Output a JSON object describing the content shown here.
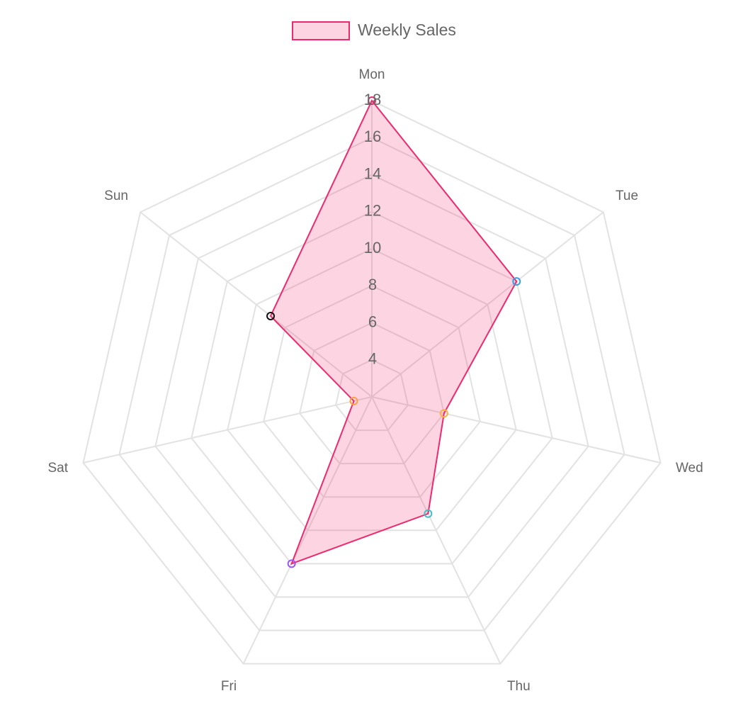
{
  "chart_data": {
    "type": "radar",
    "categories": [
      "Mon",
      "Tue",
      "Wed",
      "Thu",
      "Fri",
      "Sat",
      "Sun"
    ],
    "series": [
      {
        "name": "Weekly Sales",
        "color": "#ee2a6f",
        "values": [
          18,
          12,
          6,
          9,
          12,
          3,
          9
        ]
      }
    ],
    "point_colors": [
      "#ee2a6f",
      "#3aa0e0",
      "#ffb040",
      "#40c0c0",
      "#9a55f0",
      "#ffa040",
      "#111111"
    ],
    "ylim": [
      2,
      18
    ],
    "yticks": [
      4,
      6,
      8,
      10,
      12,
      14,
      16,
      18
    ],
    "grid": true,
    "legend": "top"
  }
}
